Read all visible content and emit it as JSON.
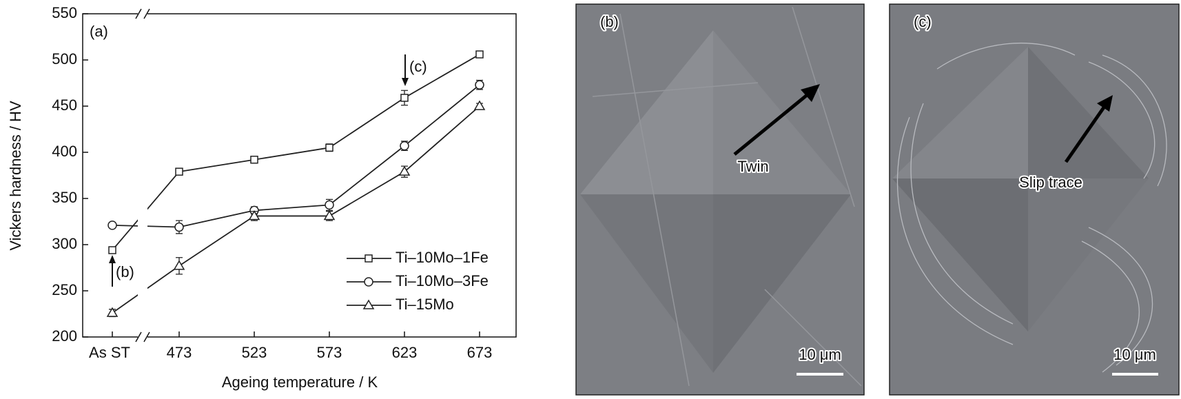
{
  "chart_data": {
    "type": "line",
    "xlabel": "Ageing temperature / K",
    "ylabel": "Vickers hardness / HV",
    "categories": [
      "As ST",
      "473",
      "523",
      "573",
      "623",
      "673"
    ],
    "ylim": [
      200,
      550
    ],
    "yticks": [
      200,
      250,
      300,
      350,
      400,
      450,
      500,
      550
    ],
    "legend": "lower right",
    "series": [
      {
        "name": "Ti–10Mo–1Fe",
        "marker": "square",
        "color": "#222",
        "values": [
          294,
          379,
          392,
          405,
          459,
          506
        ],
        "errors": [
          3,
          2,
          3,
          4,
          8,
          3
        ]
      },
      {
        "name": "Ti–10Mo–3Fe",
        "marker": "circle",
        "color": "#222",
        "values": [
          321,
          319,
          337,
          343,
          407,
          473
        ],
        "errors": [
          3,
          7,
          4,
          6,
          5,
          5
        ]
      },
      {
        "name": "Ti–15Mo",
        "marker": "triangle",
        "color": "#222",
        "values": [
          226,
          277,
          331,
          331,
          379,
          450
        ],
        "errors": [
          4,
          9,
          5,
          5,
          6,
          3
        ]
      }
    ],
    "annotations": [
      "(a)",
      "(b)",
      "(c)"
    ]
  },
  "panels": [
    {
      "label": "(b)",
      "annotation": "Twin",
      "scale_bar": "10 μm"
    },
    {
      "label": "(c)",
      "annotation": "Slip trace",
      "scale_bar": "10 μm"
    }
  ]
}
